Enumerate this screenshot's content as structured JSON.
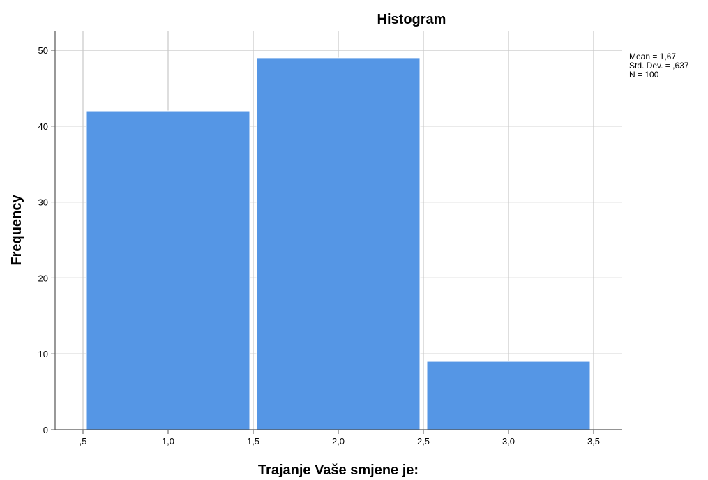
{
  "chart_data": {
    "type": "bar",
    "title": "Histogram",
    "xlabel": "Trajanje  Vaše smjene je:",
    "ylabel": "Frequency",
    "bins": [
      {
        "start": 0.5,
        "end": 1.5,
        "value": 42
      },
      {
        "start": 1.5,
        "end": 2.5,
        "value": 49
      },
      {
        "start": 2.5,
        "end": 3.5,
        "value": 9
      }
    ],
    "categories": [
      "1,0",
      "2,0",
      "3,0"
    ],
    "values": [
      42,
      49,
      9
    ],
    "xlim": [
      0.5,
      3.5
    ],
    "ylim": [
      0,
      52
    ],
    "x_ticks": [
      0.5,
      1.0,
      1.5,
      2.0,
      2.5,
      3.0,
      3.5
    ],
    "x_tick_labels": [
      ",5",
      "1,0",
      "1,5",
      "2,0",
      "2,5",
      "3,0",
      "3,5"
    ],
    "y_ticks": [
      0,
      10,
      20,
      30,
      40,
      50
    ],
    "y_tick_labels": [
      "0",
      "10",
      "20",
      "30",
      "40",
      "50"
    ],
    "grid": true,
    "bar_color": "#5596e5",
    "grid_color": "#c8c8c8",
    "stats": [
      "Mean = 1,67",
      "Std. Dev. = ,637",
      "N = 100"
    ]
  }
}
